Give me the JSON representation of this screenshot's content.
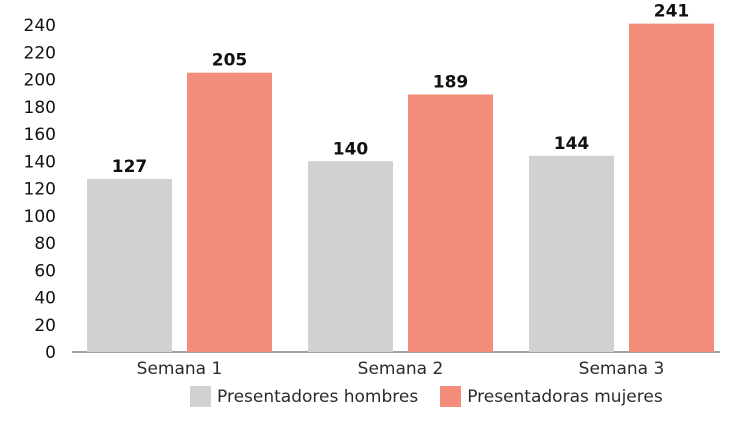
{
  "chart_data": {
    "type": "bar",
    "categories": [
      "Semana 1",
      "Semana 2",
      "Semana 3"
    ],
    "series": [
      {
        "name": "Presentadores hombres",
        "values": [
          127,
          140,
          144
        ],
        "color": "#d0d1d3"
      },
      {
        "name": "Presentadoras mujeres",
        "values": [
          205,
          189,
          241
        ],
        "color": "#f48c7b"
      }
    ],
    "yticks": [
      "0",
      "20",
      "40",
      "60",
      "80",
      "100",
      "120",
      "140",
      "160",
      "180",
      "200",
      "220",
      "240"
    ],
    "ylim": [
      0,
      240
    ],
    "grid": false,
    "data_labels": true,
    "legend_position": "bottom",
    "title": "",
    "xlabel": "",
    "ylabel": ""
  }
}
